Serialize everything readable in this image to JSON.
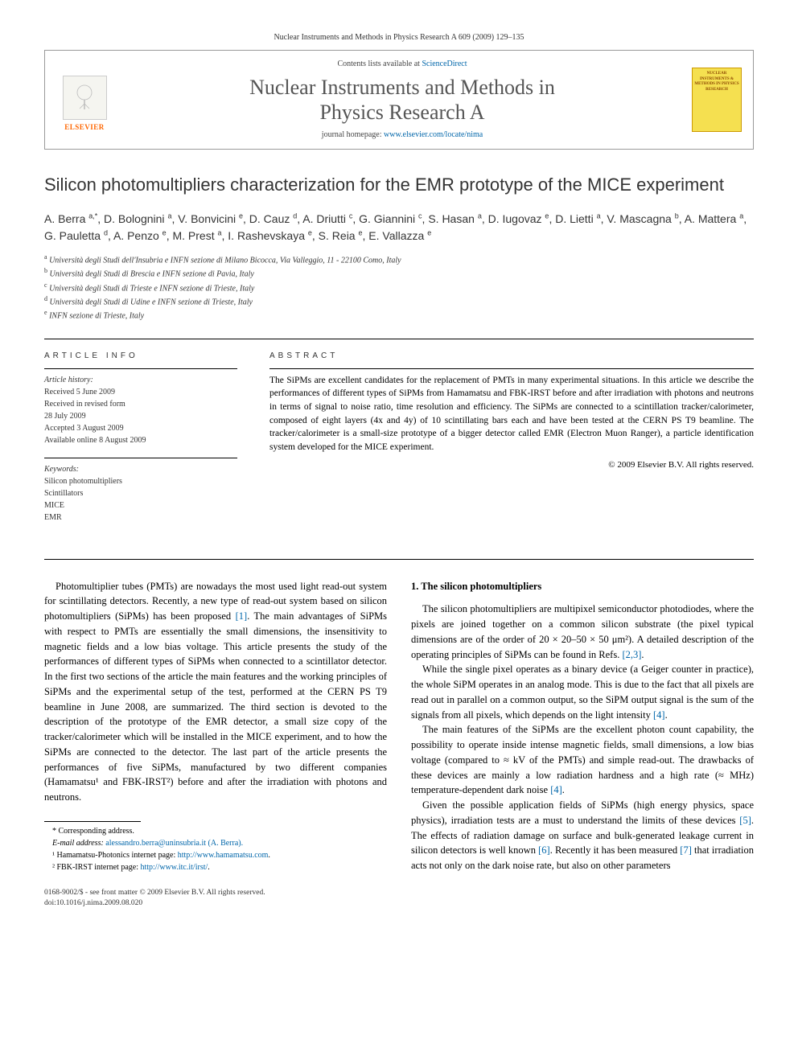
{
  "journal_header_line": "Nuclear Instruments and Methods in Physics Research A 609 (2009) 129–135",
  "header_box": {
    "elsevier_label": "ELSEVIER",
    "contents_prefix": "Contents lists available at ",
    "contents_link": "ScienceDirect",
    "journal_name_line1": "Nuclear Instruments and Methods in",
    "journal_name_line2": "Physics Research A",
    "homepage_prefix": "journal homepage: ",
    "homepage_link": "www.elsevier.com/locate/nima",
    "cover_text": "NUCLEAR INSTRUMENTS & METHODS IN PHYSICS RESEARCH"
  },
  "title": "Silicon photomultipliers characterization for the EMR prototype of the MICE experiment",
  "authors_html": "A. Berra <sup>a,*</sup>, D. Bolognini <sup>a</sup>, V. Bonvicini <sup>e</sup>, D. Cauz <sup>d</sup>, A. Driutti <sup>c</sup>, G. Giannini <sup>c</sup>, S. Hasan <sup>a</sup>, D. Iugovaz <sup>e</sup>, D. Lietti <sup>a</sup>, V. Mascagna <sup>b</sup>, A. Mattera <sup>a</sup>, G. Pauletta <sup>d</sup>, A. Penzo <sup>e</sup>, M. Prest <sup>a</sup>, I. Rashevskaya <sup>e</sup>, S. Reia <sup>e</sup>, E. Vallazza <sup>e</sup>",
  "affiliations": [
    {
      "sup": "a",
      "text": "Università degli Studi dell'Insubria e INFN sezione di Milano Bicocca, Via Valleggio, 11 - 22100 Como, Italy"
    },
    {
      "sup": "b",
      "text": "Università degli Studi di Brescia e INFN sezione di Pavia, Italy"
    },
    {
      "sup": "c",
      "text": "Università degli Studi di Trieste e INFN sezione di Trieste, Italy"
    },
    {
      "sup": "d",
      "text": "Università degli Studi di Udine e INFN sezione di Trieste, Italy"
    },
    {
      "sup": "e",
      "text": "INFN sezione di Trieste, Italy"
    }
  ],
  "article_info": {
    "heading": "ARTICLE INFO",
    "history_label": "Article history:",
    "history": [
      "Received 5 June 2009",
      "Received in revised form",
      "28 July 2009",
      "Accepted 3 August 2009",
      "Available online 8 August 2009"
    ],
    "keywords_label": "Keywords:",
    "keywords": [
      "Silicon photomultipliers",
      "Scintillators",
      "MICE",
      "EMR"
    ]
  },
  "abstract": {
    "heading": "ABSTRACT",
    "text": "The SiPMs are excellent candidates for the replacement of PMTs in many experimental situations. In this article we describe the performances of different types of SiPMs from Hamamatsu and FBK-IRST before and after irradiation with photons and neutrons in terms of signal to noise ratio, time resolution and efficiency. The SiPMs are connected to a scintillation tracker/calorimeter, composed of eight layers (4x and 4y) of 10 scintillating bars each and have been tested at the CERN PS T9 beamline. The tracker/calorimeter is a small-size prototype of a bigger detector called EMR (Electron Muon Ranger), a particle identification system developed for the MICE experiment.",
    "copyright": "© 2009 Elsevier B.V. All rights reserved."
  },
  "body": {
    "intro": "Photomultiplier tubes (PMTs) are nowadays the most used light read-out system for scintillating detectors. Recently, a new type of read-out system based on silicon photomultipliers (SiPMs) has been proposed [1]. The main advantages of SiPMs with respect to PMTs are essentially the small dimensions, the insensitivity to magnetic fields and a low bias voltage. This article presents the study of the performances of different types of SiPMs when connected to a scintillator detector. In the first two sections of the article the main features and the working principles of SiPMs and the experimental setup of the test, performed at the CERN PS T9 beamline in June 2008, are summarized. The third section is devoted to the description of the prototype of the EMR detector, a small size copy of the tracker/calorimeter which will be installed in the MICE experiment, and to how the SiPMs are connected to the detector. The last part of the article presents the performances of five SiPMs, manufactured by two different companies (Hamamatsu¹ and FBK-IRST²) before and after the irradiation with photons and neutrons.",
    "section1_title": "1. The silicon photomultipliers",
    "section1_p1": "The silicon photomultipliers are multipixel semiconductor photodiodes, where the pixels are joined together on a common silicon substrate (the pixel typical dimensions are of the order of 20 × 20–50 × 50 μm²). A detailed description of the operating principles of SiPMs can be found in Refs. [2,3].",
    "section1_p2": "While the single pixel operates as a binary device (a Geiger counter in practice), the whole SiPM operates in an analog mode. This is due to the fact that all pixels are read out in parallel on a common output, so the SiPM output signal is the sum of the signals from all pixels, which depends on the light intensity [4].",
    "section1_p3": "The main features of the SiPMs are the excellent photon count capability, the possibility to operate inside intense magnetic fields, small dimensions, a low bias voltage (compared to ≈ kV of the PMTs) and simple read-out. The drawbacks of these devices are mainly a low radiation hardness and a high rate (≈ MHz) temperature-dependent dark noise [4].",
    "section1_p4": "Given the possible application fields of SiPMs (high energy physics, space physics), irradiation tests are a must to understand the limits of these devices [5]. The effects of radiation damage on surface and bulk-generated leakage current in silicon detectors is well known [6]. Recently it has been measured [7] that irradiation acts not only on the dark noise rate, but also on other parameters"
  },
  "footnotes": {
    "corr": "* Corresponding address.",
    "email_label": "E-mail address:",
    "email": "alessandro.berra@uninsubria.it (A. Berra).",
    "fn1_label": "¹ Hamamatsu-Photonics internet page: ",
    "fn1_link": "http://www.hamamatsu.com",
    "fn2_label": "² FBK-IRST internet page: ",
    "fn2_link": "http://www.itc.it/irst/"
  },
  "bottom": {
    "line1": "0168-9002/$ - see front matter © 2009 Elsevier B.V. All rights reserved.",
    "line2": "doi:10.1016/j.nima.2009.08.020"
  }
}
